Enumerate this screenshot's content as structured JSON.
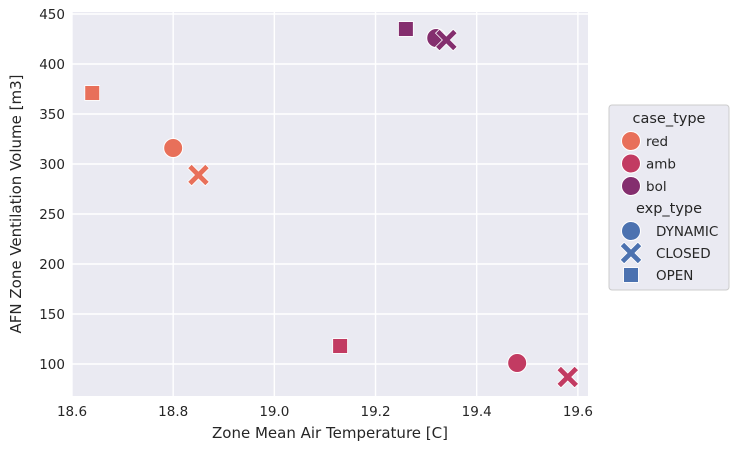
{
  "chart_data": {
    "type": "scatter",
    "xlabel": "Zone Mean Air Temperature [C]",
    "ylabel": "AFN Zone Ventilation Volume [m3]",
    "xlim": [
      18.6,
      19.62
    ],
    "ylim": [
      68,
      452
    ],
    "x_ticks": [
      18.6,
      18.8,
      19.0,
      19.2,
      19.4,
      19.6
    ],
    "x_tick_labels": [
      "18.6",
      "18.8",
      "19.0",
      "19.2",
      "19.4",
      "19.6"
    ],
    "y_ticks": [
      100,
      150,
      200,
      250,
      300,
      350,
      400,
      450
    ],
    "y_tick_labels": [
      "100",
      "150",
      "200",
      "250",
      "300",
      "350",
      "400",
      "450"
    ],
    "grid": true,
    "legend_placement": "right",
    "hue": {
      "title": "case_type",
      "items": [
        {
          "label": "red",
          "color": "#e8705a"
        },
        {
          "label": "amb",
          "color": "#c23b62"
        },
        {
          "label": "bol",
          "color": "#842e6e"
        }
      ]
    },
    "style": {
      "title": "exp_type",
      "color": "#4c72b0",
      "items": [
        {
          "label": "DYNAMIC",
          "marker": "circle"
        },
        {
          "label": "CLOSED",
          "marker": "x"
        },
        {
          "label": "OPEN",
          "marker": "square"
        }
      ]
    },
    "points": [
      {
        "x": 18.64,
        "y": 371,
        "case_type": "red",
        "exp_type": "OPEN"
      },
      {
        "x": 18.8,
        "y": 316,
        "case_type": "red",
        "exp_type": "DYNAMIC"
      },
      {
        "x": 18.85,
        "y": 289,
        "case_type": "red",
        "exp_type": "CLOSED"
      },
      {
        "x": 19.13,
        "y": 118,
        "case_type": "amb",
        "exp_type": "OPEN"
      },
      {
        "x": 19.48,
        "y": 101,
        "case_type": "amb",
        "exp_type": "DYNAMIC"
      },
      {
        "x": 19.58,
        "y": 87,
        "case_type": "amb",
        "exp_type": "CLOSED"
      },
      {
        "x": 19.26,
        "y": 435,
        "case_type": "bol",
        "exp_type": "OPEN"
      },
      {
        "x": 19.32,
        "y": 426,
        "case_type": "bol",
        "exp_type": "DYNAMIC"
      },
      {
        "x": 19.34,
        "y": 424,
        "case_type": "bol",
        "exp_type": "CLOSED"
      }
    ]
  }
}
